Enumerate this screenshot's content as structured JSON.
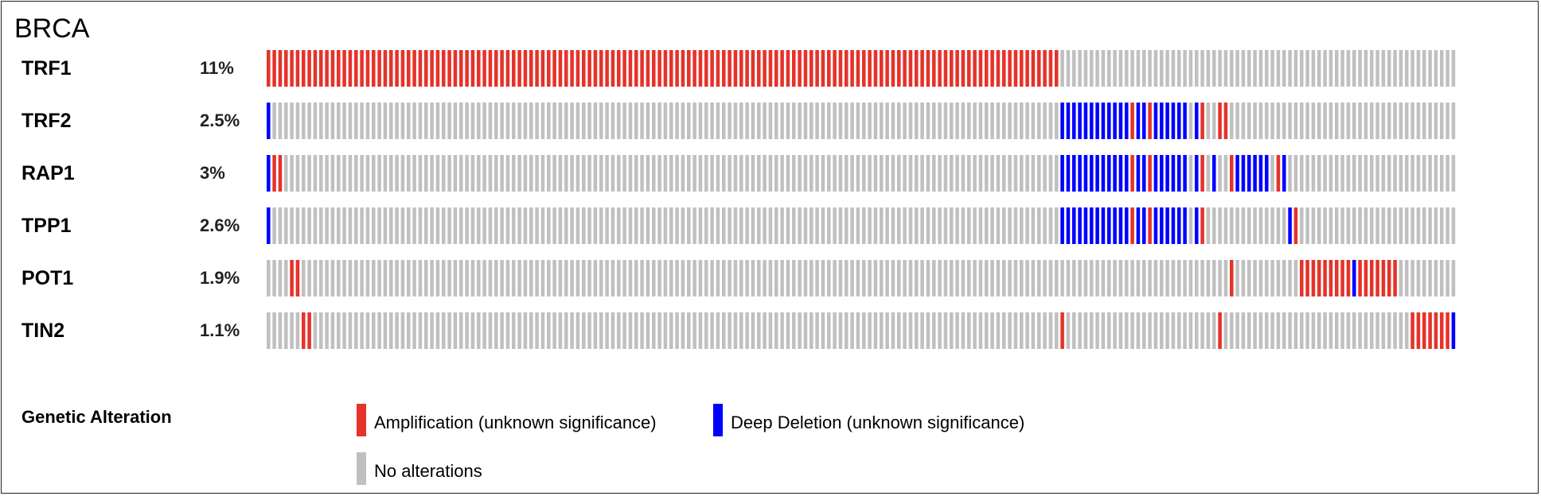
{
  "colors": {
    "amplification": "#e5332a",
    "deep_deletion": "#0000ff",
    "no_alteration": "#c0c0c0"
  },
  "chart_data": {
    "type": "oncoprint",
    "title": "BRCA",
    "num_samples": 204,
    "legend_title": "Genetic Alteration",
    "legend": [
      {
        "key": "amplification",
        "label": "Amplification (unknown significance)"
      },
      {
        "key": "deep_deletion",
        "label": "Deep Deletion (unknown significance)"
      },
      {
        "key": "no_alteration",
        "label": "No alterations"
      }
    ],
    "genes": [
      {
        "name": "TRF1",
        "percent": "11%",
        "alterations": {
          "amplification": [
            [
              0,
              135
            ]
          ],
          "deep_deletion": []
        }
      },
      {
        "name": "TRF2",
        "percent": "2.5%",
        "alterations": {
          "amplification": [
            148,
            151,
            160,
            163,
            164
          ],
          "deep_deletion": [
            0,
            [
              136,
              147
            ],
            149,
            150,
            [
              152,
              157
            ],
            159
          ]
        }
      },
      {
        "name": "RAP1",
        "percent": "3%",
        "alterations": {
          "amplification": [
            1,
            2,
            148,
            151,
            160,
            165,
            173
          ],
          "deep_deletion": [
            0,
            [
              136,
              147
            ],
            149,
            150,
            [
              152,
              157
            ],
            159,
            162,
            [
              166,
              171
            ],
            174
          ]
        }
      },
      {
        "name": "TPP1",
        "percent": "2.6%",
        "alterations": {
          "amplification": [
            148,
            151,
            160,
            176
          ],
          "deep_deletion": [
            0,
            [
              136,
              147
            ],
            149,
            150,
            [
              152,
              157
            ],
            159,
            175
          ]
        }
      },
      {
        "name": "POT1",
        "percent": "1.9%",
        "alterations": {
          "amplification": [
            4,
            5,
            165,
            [
              177,
              185
            ],
            [
              187,
              193
            ]
          ],
          "deep_deletion": [
            186
          ]
        }
      },
      {
        "name": "TIN2",
        "percent": "1.1%",
        "alterations": {
          "amplification": [
            6,
            7,
            136,
            163,
            [
              196,
              202
            ]
          ],
          "deep_deletion": [
            203
          ]
        }
      }
    ]
  }
}
